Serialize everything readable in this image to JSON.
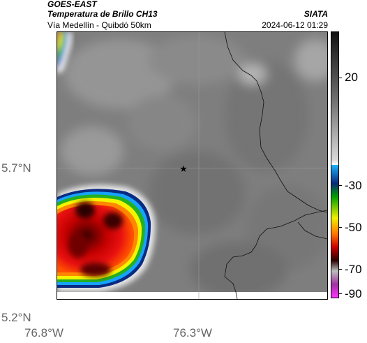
{
  "header": {
    "satellite": "GOES-EAST",
    "product": "Temperatura de Brillo CH13",
    "region": "Vía Medellín - Quibdó 50km",
    "org": "SIATA",
    "datetime": "2024-06-12 01:29"
  },
  "map": {
    "y_ticks": [
      "5.7°N",
      "5.2°N"
    ],
    "x_ticks": [
      "76.8°W",
      "76.3°W"
    ],
    "marker_icon": "star-icon"
  },
  "colorbar": {
    "ticks": [
      "20",
      "-30",
      "-50",
      "-70",
      "-90"
    ],
    "stops": [
      [
        "#111111",
        0.0
      ],
      [
        "#6e6e6e",
        0.25
      ],
      [
        "#d8d8d8",
        0.48
      ],
      [
        "#ffffff",
        0.5
      ],
      [
        "#1fb3ff",
        0.5
      ],
      [
        "#0a2a7a",
        0.57
      ],
      [
        "#00a000",
        0.62
      ],
      [
        "#f0f000",
        0.7
      ],
      [
        "#ff7700",
        0.76
      ],
      [
        "#cc0000",
        0.81
      ],
      [
        "#2a0000",
        0.86
      ],
      [
        "#bdbdbd",
        0.9
      ],
      [
        "#a033a0",
        0.95
      ],
      [
        "#ff33ff",
        1.0
      ]
    ]
  }
}
